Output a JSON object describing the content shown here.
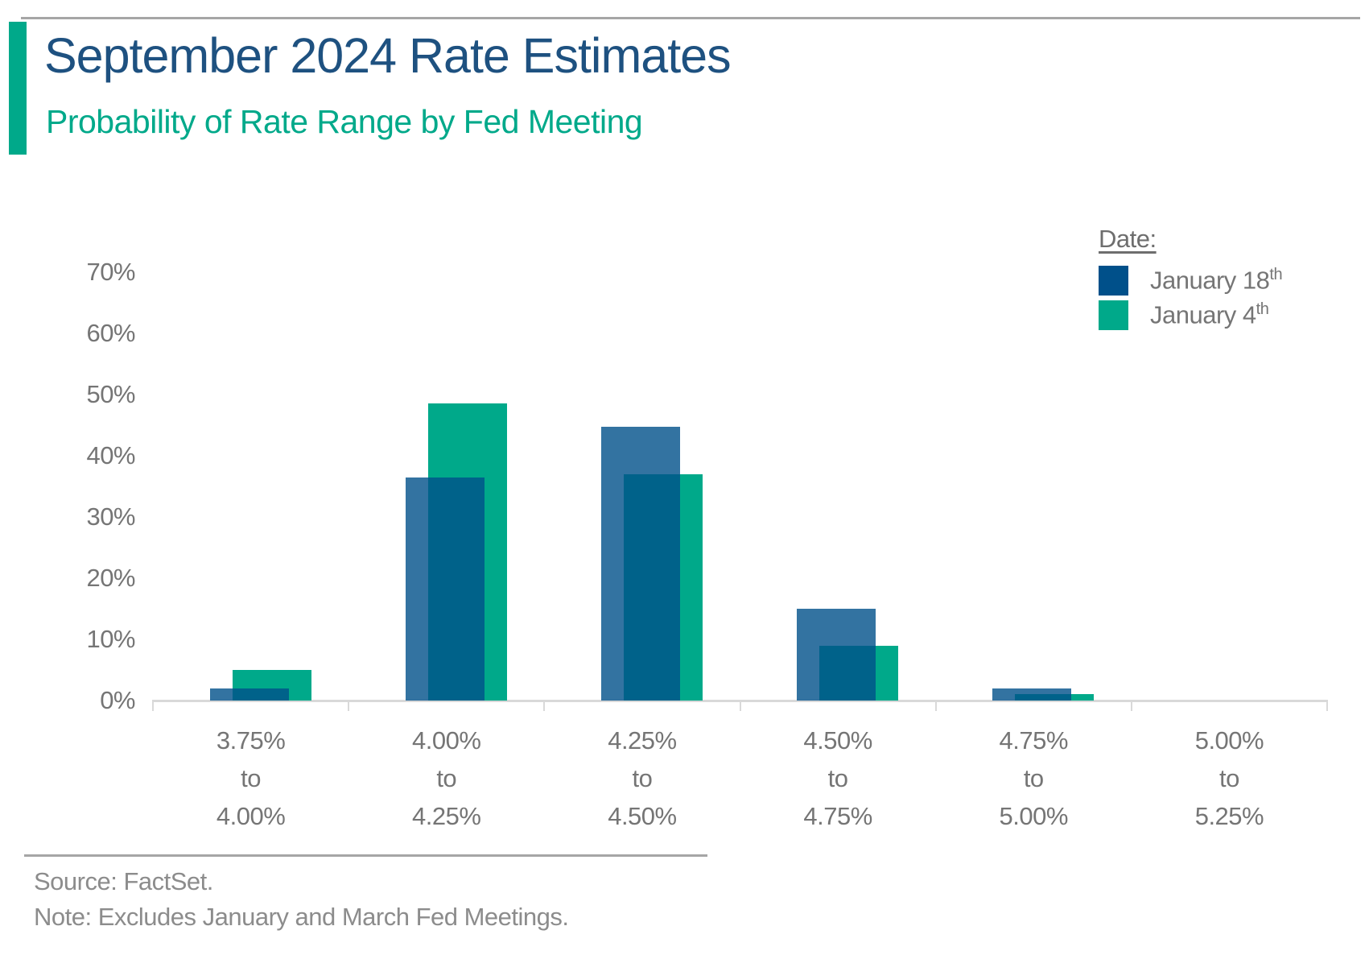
{
  "header": {
    "title": "September 2024 Rate Estimates",
    "subtitle": "Probability of Rate Range by Fed Meeting"
  },
  "colors": {
    "title_blue": "#1e5180",
    "accent_teal": "#00a98a",
    "series_jan18_navy": "#00508a",
    "series_jan18_over_white": "#3373a1",
    "series_overlap_navy": "#005c8c",
    "series_jan4_teal": "#00a98a",
    "axis_gray": "#d9d9d9",
    "text_gray": "#757575",
    "footer_gray": "#8c8c8c",
    "rule_gray": "#a6a6a6"
  },
  "legend": {
    "heading": "Date:",
    "items": [
      {
        "label": "January 18",
        "sup": "th",
        "color": "#00508a"
      },
      {
        "label": "January 4",
        "sup": "th",
        "color": "#00a98a"
      }
    ]
  },
  "chart_data": {
    "type": "bar",
    "title": "September 2024 Rate Estimates",
    "subtitle": "Probability of Rate Range by Fed Meeting",
    "xlabel": "",
    "ylabel": "",
    "ylim": [
      0,
      70
    ],
    "grid": false,
    "legend_position": "top-right",
    "yticks": [
      "0%",
      "10%",
      "20%",
      "30%",
      "40%",
      "50%",
      "60%",
      "70%"
    ],
    "categories": [
      "3.75%\nto\n4.00%",
      "4.00%\nto\n4.25%",
      "4.25%\nto\n4.50%",
      "4.50%\nto\n4.75%",
      "4.75%\nto\n5.00%",
      "5.00%\nto\n5.25%"
    ],
    "series": [
      {
        "name": "January 18th",
        "values": [
          2,
          36.5,
          44.7,
          15,
          2,
          0
        ],
        "color": "#00508a",
        "fill_opacity": 0.8
      },
      {
        "name": "January 4th",
        "values": [
          5,
          48.5,
          37,
          9,
          1,
          0
        ],
        "color": "#00a98a",
        "fill_opacity": 1
      }
    ]
  },
  "footer": {
    "source": "Source: FactSet.",
    "note": "Note: Excludes January and March Fed Meetings."
  }
}
